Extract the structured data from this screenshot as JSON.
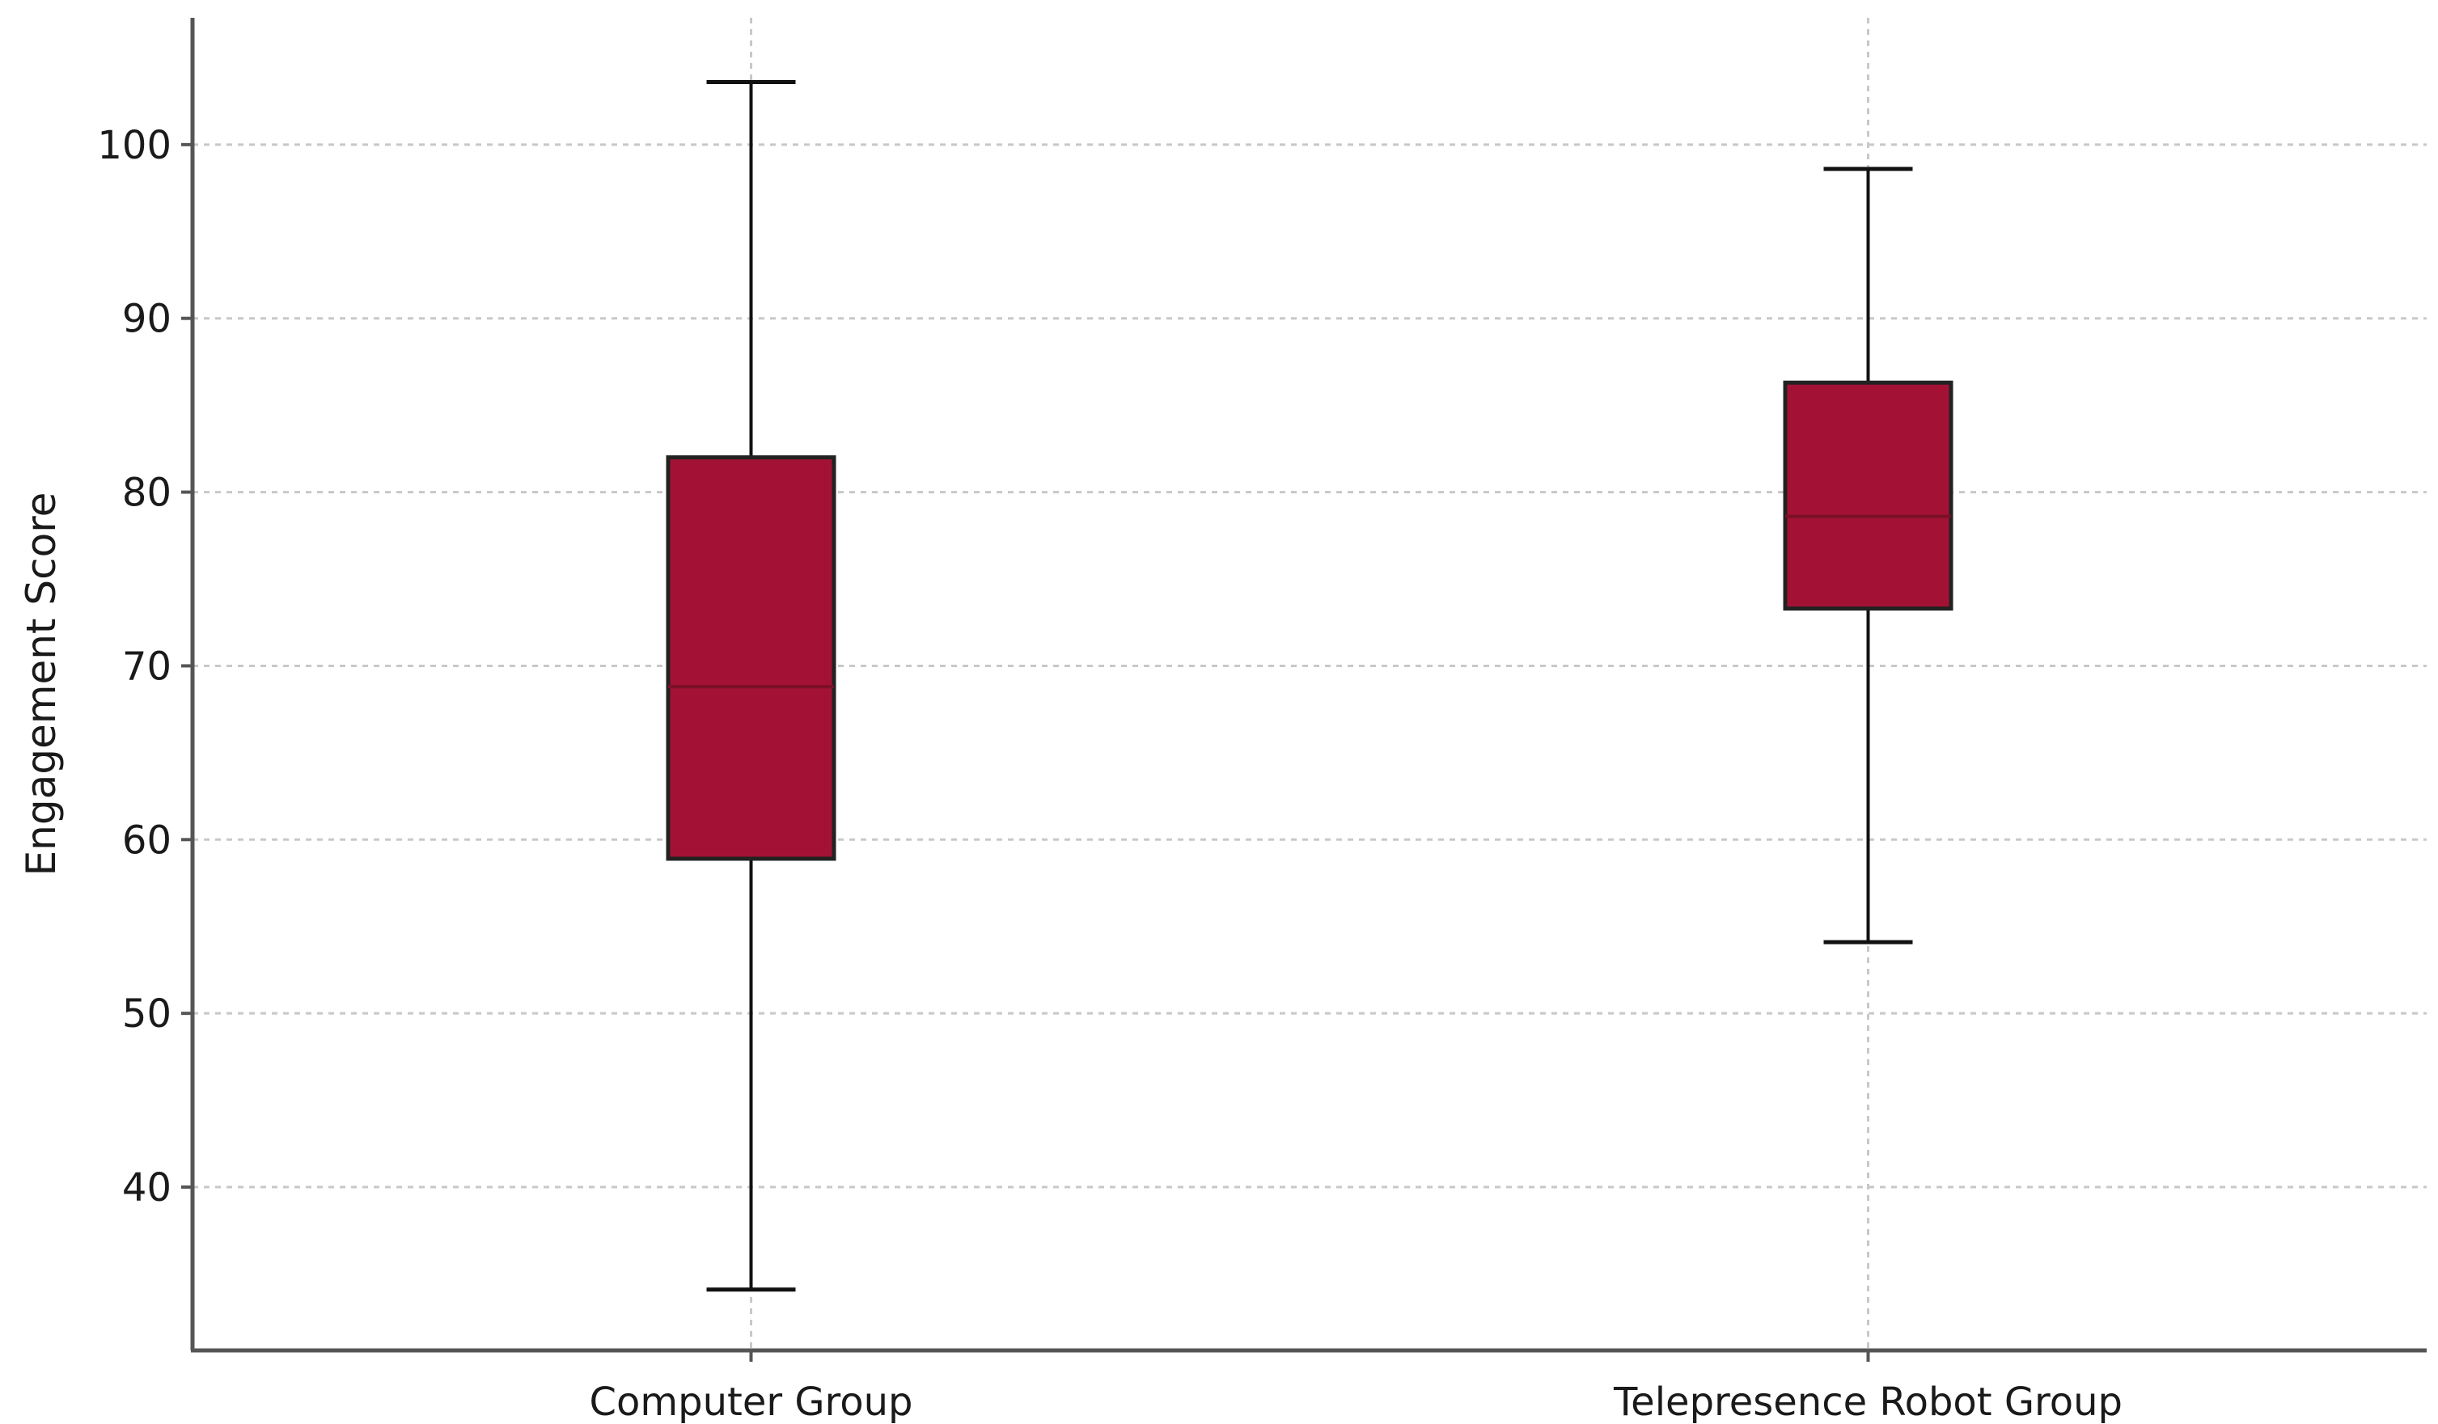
{
  "chart_data": {
    "type": "box",
    "title": "",
    "xlabel": "",
    "ylabel": "Engagement Score",
    "ylim": [
      30.6,
      107.3
    ],
    "yticks": [
      40,
      50,
      60,
      70,
      80,
      90,
      100
    ],
    "grid": true,
    "box_color": "#a31234",
    "median_color": "#7a1028",
    "categories": [
      "Computer Group",
      "Telepresence Robot Group"
    ],
    "boxes": [
      {
        "name": "Computer Group",
        "whisker_low": 34.1,
        "q1": 58.9,
        "median": 68.8,
        "q3": 82.0,
        "whisker_high": 103.6
      },
      {
        "name": "Telepresence Robot Group",
        "whisker_low": 54.1,
        "q1": 73.3,
        "median": 78.6,
        "q3": 86.3,
        "whisker_high": 98.6
      }
    ]
  }
}
